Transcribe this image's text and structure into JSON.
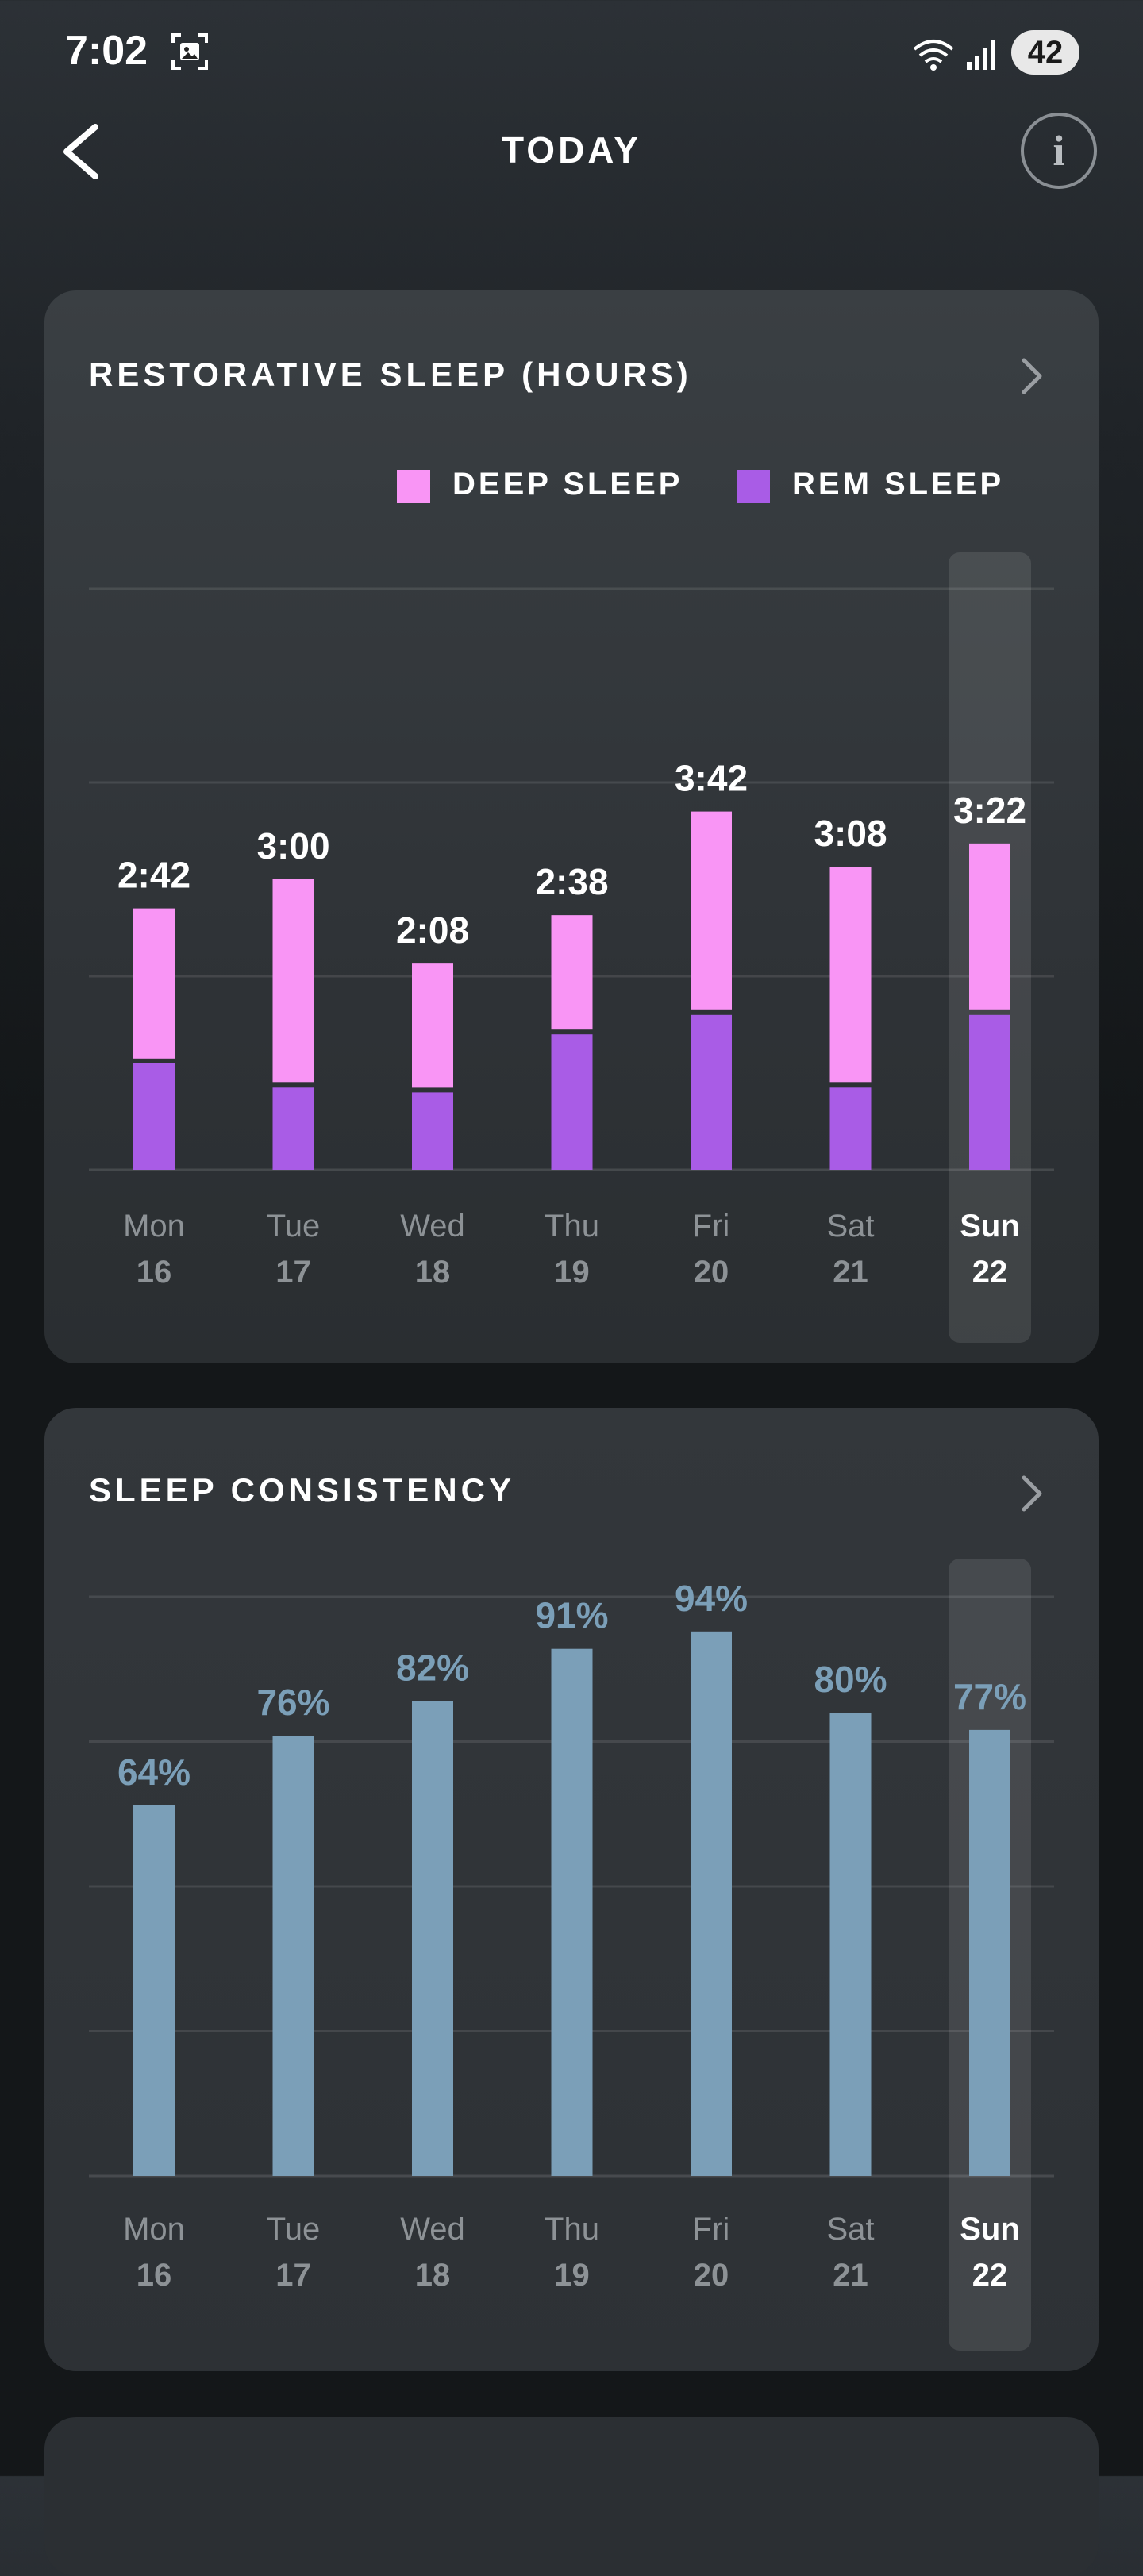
{
  "status": {
    "time": "7:02",
    "battery": "42"
  },
  "header": {
    "title": "TODAY"
  },
  "restorative": {
    "title": "RESTORATIVE SLEEP (HOURS)",
    "legend": [
      {
        "label": "DEEP SLEEP",
        "color": "#f995f5"
      },
      {
        "label": "REM SLEEP",
        "color": "#a95ce6"
      }
    ]
  },
  "consistency": {
    "title": "SLEEP CONSISTENCY"
  },
  "chart_data": [
    {
      "type": "bar",
      "stacked": true,
      "title": "RESTORATIVE SLEEP (HOURS)",
      "categories": [
        "Mon 16",
        "Tue 17",
        "Wed 18",
        "Thu 19",
        "Fri 20",
        "Sat 21",
        "Sun 22"
      ],
      "day_names": [
        "Mon",
        "Tue",
        "Wed",
        "Thu",
        "Fri",
        "Sat",
        "Sun"
      ],
      "day_numbers": [
        "16",
        "17",
        "18",
        "19",
        "20",
        "21",
        "22"
      ],
      "totals_label": [
        "2:42",
        "3:00",
        "2:08",
        "2:38",
        "3:42",
        "3:08",
        "3:22"
      ],
      "series": [
        {
          "name": "REM SLEEP",
          "color": "#a95ce6",
          "values": [
            1.1,
            0.85,
            0.8,
            1.4,
            1.6,
            0.85,
            1.6
          ]
        },
        {
          "name": "DEEP SLEEP",
          "color": "#f995f5",
          "values": [
            1.6,
            2.15,
            1.33,
            1.23,
            2.1,
            2.28,
            1.77
          ]
        }
      ],
      "ylim": [
        0,
        6
      ],
      "gridlines": [
        2,
        4,
        6
      ],
      "grid": true,
      "highlighted_category": "Sun 22"
    },
    {
      "type": "bar",
      "title": "SLEEP CONSISTENCY",
      "categories": [
        "Mon 16",
        "Tue 17",
        "Wed 18",
        "Thu 19",
        "Fri 20",
        "Sat 21",
        "Sun 22"
      ],
      "day_names": [
        "Mon",
        "Tue",
        "Wed",
        "Thu",
        "Fri",
        "Sat",
        "Sun"
      ],
      "day_numbers": [
        "16",
        "17",
        "18",
        "19",
        "20",
        "21",
        "22"
      ],
      "values": [
        64,
        76,
        82,
        91,
        94,
        80,
        77
      ],
      "value_labels": [
        "64%",
        "76%",
        "82%",
        "91%",
        "94%",
        "80%",
        "77%"
      ],
      "color": "#7b9fb8",
      "ylim": [
        0,
        100
      ],
      "gridlines": [
        25,
        50,
        75,
        100
      ],
      "grid": true,
      "highlighted_category": "Sun 22"
    }
  ]
}
